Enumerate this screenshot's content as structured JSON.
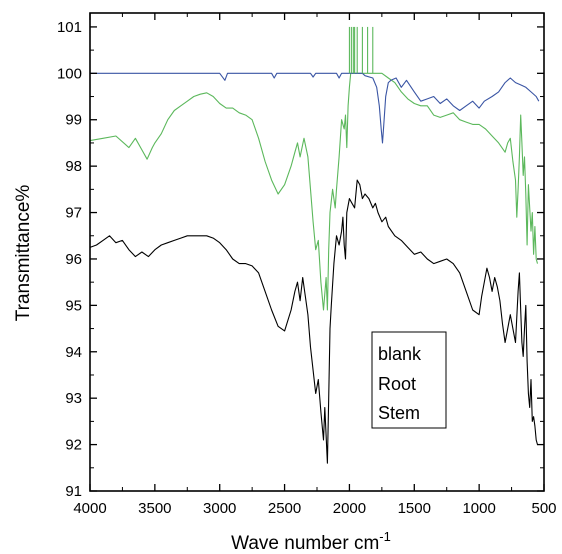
{
  "chart_data": {
    "type": "line",
    "title": "",
    "xlabel": "Wave number cm",
    "xlabel_superscript": "-1",
    "ylabel": "Transmittance%",
    "xlim": [
      4000,
      500
    ],
    "ylim": [
      91,
      101.3
    ],
    "x_reversed": true,
    "grid": false,
    "legend_placement": "bottom-right",
    "x_ticks": [
      4000,
      3500,
      3000,
      2500,
      2000,
      1500,
      1000,
      500
    ],
    "y_ticks": [
      91,
      92,
      93,
      94,
      95,
      96,
      97,
      98,
      99,
      100,
      101
    ],
    "series": [
      {
        "name": "blank",
        "color": "#3a55a4",
        "points": [
          [
            4000,
            100
          ],
          [
            3000,
            100
          ],
          [
            2960,
            99.85
          ],
          [
            2940,
            100
          ],
          [
            2600,
            100
          ],
          [
            2580,
            99.9
          ],
          [
            2560,
            100
          ],
          [
            2300,
            100
          ],
          [
            2280,
            99.92
          ],
          [
            2260,
            100
          ],
          [
            2100,
            100
          ],
          [
            2080,
            99.9
          ],
          [
            2060,
            100
          ],
          [
            1900,
            100
          ],
          [
            1880,
            99.95
          ],
          [
            1820,
            99.9
          ],
          [
            1790,
            99.7
          ],
          [
            1770,
            99.3
          ],
          [
            1755,
            98.8
          ],
          [
            1745,
            98.5
          ],
          [
            1735,
            98.9
          ],
          [
            1720,
            99.5
          ],
          [
            1700,
            99.8
          ],
          [
            1680,
            99.85
          ],
          [
            1640,
            99.9
          ],
          [
            1600,
            99.7
          ],
          [
            1560,
            99.85
          ],
          [
            1500,
            99.6
          ],
          [
            1450,
            99.4
          ],
          [
            1400,
            99.45
          ],
          [
            1350,
            99.5
          ],
          [
            1300,
            99.35
          ],
          [
            1250,
            99.45
          ],
          [
            1200,
            99.3
          ],
          [
            1150,
            99.2
          ],
          [
            1100,
            99.3
          ],
          [
            1050,
            99.4
          ],
          [
            1000,
            99.25
          ],
          [
            960,
            99.4
          ],
          [
            900,
            99.5
          ],
          [
            850,
            99.6
          ],
          [
            800,
            99.8
          ],
          [
            760,
            99.9
          ],
          [
            720,
            99.8
          ],
          [
            680,
            99.75
          ],
          [
            640,
            99.7
          ],
          [
            600,
            99.6
          ],
          [
            560,
            99.5
          ],
          [
            540,
            99.4
          ]
        ]
      },
      {
        "name": "Root",
        "color": "#5cb85c",
        "points": [
          [
            4000,
            98.55
          ],
          [
            3900,
            98.6
          ],
          [
            3800,
            98.65
          ],
          [
            3700,
            98.4
          ],
          [
            3650,
            98.6
          ],
          [
            3600,
            98.35
          ],
          [
            3560,
            98.15
          ],
          [
            3520,
            98.4
          ],
          [
            3500,
            98.5
          ],
          [
            3450,
            98.7
          ],
          [
            3400,
            99.0
          ],
          [
            3350,
            99.2
          ],
          [
            3300,
            99.3
          ],
          [
            3250,
            99.4
          ],
          [
            3200,
            99.5
          ],
          [
            3150,
            99.55
          ],
          [
            3100,
            99.58
          ],
          [
            3050,
            99.5
          ],
          [
            3000,
            99.35
          ],
          [
            2950,
            99.25
          ],
          [
            2900,
            99.25
          ],
          [
            2850,
            99.15
          ],
          [
            2800,
            99.1
          ],
          [
            2750,
            99.0
          ],
          [
            2700,
            98.6
          ],
          [
            2650,
            98.1
          ],
          [
            2600,
            97.7
          ],
          [
            2550,
            97.4
          ],
          [
            2500,
            97.6
          ],
          [
            2450,
            98.0
          ],
          [
            2420,
            98.3
          ],
          [
            2400,
            98.5
          ],
          [
            2380,
            98.2
          ],
          [
            2350,
            98.6
          ],
          [
            2320,
            98.2
          ],
          [
            2300,
            97.5
          ],
          [
            2280,
            96.8
          ],
          [
            2260,
            96.2
          ],
          [
            2240,
            96.4
          ],
          [
            2220,
            95.5
          ],
          [
            2200,
            94.9
          ],
          [
            2180,
            95.6
          ],
          [
            2170,
            94.9
          ],
          [
            2160,
            96.2
          ],
          [
            2150,
            97.0
          ],
          [
            2130,
            97.5
          ],
          [
            2110,
            97.1
          ],
          [
            2100,
            97.5
          ],
          [
            2080,
            98.2
          ],
          [
            2060,
            99.0
          ],
          [
            2040,
            98.8
          ],
          [
            2030,
            99.1
          ],
          [
            2020,
            98.4
          ],
          [
            2010,
            99.3
          ],
          [
            2000,
            99.7
          ],
          [
            1990,
            100.0
          ],
          [
            1950,
            100.0
          ],
          [
            1900,
            100.0
          ],
          [
            1850,
            100.0
          ],
          [
            1800,
            100.0
          ],
          [
            1750,
            100.0
          ],
          [
            1700,
            99.9
          ],
          [
            1650,
            99.8
          ],
          [
            1600,
            99.6
          ],
          [
            1550,
            99.45
          ],
          [
            1500,
            99.35
          ],
          [
            1450,
            99.3
          ],
          [
            1400,
            99.3
          ],
          [
            1350,
            99.1
          ],
          [
            1300,
            99.05
          ],
          [
            1250,
            99.1
          ],
          [
            1200,
            99.15
          ],
          [
            1150,
            99.0
          ],
          [
            1100,
            98.95
          ],
          [
            1050,
            98.9
          ],
          [
            1000,
            98.9
          ],
          [
            950,
            98.8
          ],
          [
            900,
            98.65
          ],
          [
            850,
            98.5
          ],
          [
            800,
            98.3
          ],
          [
            780,
            98.5
          ],
          [
            760,
            98.6
          ],
          [
            740,
            98.1
          ],
          [
            720,
            97.7
          ],
          [
            710,
            96.9
          ],
          [
            700,
            97.5
          ],
          [
            690,
            98.2
          ],
          [
            680,
            99.1
          ],
          [
            670,
            98.5
          ],
          [
            660,
            97.8
          ],
          [
            650,
            98.2
          ],
          [
            640,
            97.4
          ],
          [
            630,
            96.3
          ],
          [
            620,
            97.6
          ],
          [
            610,
            97.1
          ],
          [
            600,
            96.6
          ],
          [
            590,
            97.0
          ],
          [
            580,
            96.1
          ],
          [
            570,
            96.7
          ],
          [
            560,
            96.0
          ],
          [
            550,
            95.9
          ]
        ]
      },
      {
        "name": "Stem",
        "color": "#000000",
        "points": [
          [
            4000,
            96.25
          ],
          [
            3950,
            96.3
          ],
          [
            3900,
            96.4
          ],
          [
            3850,
            96.5
          ],
          [
            3800,
            96.35
          ],
          [
            3750,
            96.4
          ],
          [
            3700,
            96.2
          ],
          [
            3650,
            96.05
          ],
          [
            3600,
            96.15
          ],
          [
            3550,
            96.05
          ],
          [
            3500,
            96.2
          ],
          [
            3450,
            96.3
          ],
          [
            3400,
            96.35
          ],
          [
            3350,
            96.4
          ],
          [
            3300,
            96.45
          ],
          [
            3250,
            96.5
          ],
          [
            3200,
            96.5
          ],
          [
            3150,
            96.5
          ],
          [
            3100,
            96.5
          ],
          [
            3050,
            96.45
          ],
          [
            3000,
            96.35
          ],
          [
            2950,
            96.2
          ],
          [
            2900,
            96.0
          ],
          [
            2850,
            95.9
          ],
          [
            2800,
            95.9
          ],
          [
            2750,
            95.85
          ],
          [
            2700,
            95.7
          ],
          [
            2650,
            95.3
          ],
          [
            2600,
            94.9
          ],
          [
            2550,
            94.55
          ],
          [
            2500,
            94.45
          ],
          [
            2450,
            94.9
          ],
          [
            2420,
            95.3
          ],
          [
            2400,
            95.5
          ],
          [
            2380,
            95.1
          ],
          [
            2360,
            95.6
          ],
          [
            2340,
            95.2
          ],
          [
            2320,
            94.8
          ],
          [
            2300,
            94.1
          ],
          [
            2280,
            93.6
          ],
          [
            2260,
            93.1
          ],
          [
            2240,
            93.4
          ],
          [
            2220,
            92.7
          ],
          [
            2200,
            92.1
          ],
          [
            2190,
            92.8
          ],
          [
            2180,
            92.2
          ],
          [
            2170,
            91.6
          ],
          [
            2160,
            93.0
          ],
          [
            2150,
            94.5
          ],
          [
            2140,
            95.0
          ],
          [
            2120,
            95.9
          ],
          [
            2100,
            96.5
          ],
          [
            2080,
            96.3
          ],
          [
            2060,
            96.6
          ],
          [
            2050,
            96.9
          ],
          [
            2040,
            96.3
          ],
          [
            2030,
            96.0
          ],
          [
            2020,
            97.0
          ],
          [
            2000,
            97.3
          ],
          [
            1980,
            97.2
          ],
          [
            1960,
            97.1
          ],
          [
            1940,
            97.7
          ],
          [
            1920,
            97.6
          ],
          [
            1900,
            97.3
          ],
          [
            1880,
            97.4
          ],
          [
            1850,
            97.3
          ],
          [
            1820,
            97.1
          ],
          [
            1800,
            97.2
          ],
          [
            1780,
            97.0
          ],
          [
            1750,
            96.8
          ],
          [
            1720,
            96.9
          ],
          [
            1700,
            96.7
          ],
          [
            1650,
            96.5
          ],
          [
            1600,
            96.4
          ],
          [
            1550,
            96.25
          ],
          [
            1500,
            96.1
          ],
          [
            1450,
            96.15
          ],
          [
            1400,
            96.0
          ],
          [
            1350,
            95.9
          ],
          [
            1300,
            95.95
          ],
          [
            1250,
            96.0
          ],
          [
            1200,
            95.9
          ],
          [
            1150,
            95.7
          ],
          [
            1100,
            95.3
          ],
          [
            1050,
            94.9
          ],
          [
            1000,
            94.8
          ],
          [
            980,
            95.2
          ],
          [
            960,
            95.5
          ],
          [
            940,
            95.8
          ],
          [
            920,
            95.6
          ],
          [
            900,
            95.3
          ],
          [
            880,
            95.6
          ],
          [
            860,
            95.4
          ],
          [
            840,
            95.1
          ],
          [
            820,
            94.6
          ],
          [
            800,
            94.2
          ],
          [
            780,
            94.5
          ],
          [
            760,
            94.8
          ],
          [
            740,
            94.5
          ],
          [
            720,
            94.2
          ],
          [
            700,
            95.3
          ],
          [
            690,
            95.7
          ],
          [
            680,
            94.9
          ],
          [
            670,
            94.2
          ],
          [
            660,
            93.9
          ],
          [
            650,
            94.5
          ],
          [
            640,
            95.0
          ],
          [
            630,
            93.8
          ],
          [
            620,
            93.1
          ],
          [
            610,
            92.8
          ],
          [
            600,
            93.4
          ],
          [
            590,
            92.5
          ],
          [
            580,
            92.6
          ],
          [
            570,
            92.4
          ],
          [
            560,
            92.1
          ],
          [
            550,
            92.0
          ]
        ]
      }
    ],
    "spikes": [
      {
        "series": "Root",
        "x": [
          2000,
          1985,
          1970,
          1960,
          1940,
          1900,
          1860,
          1820
        ],
        "from": 100.0,
        "to": 101.0
      }
    ]
  }
}
